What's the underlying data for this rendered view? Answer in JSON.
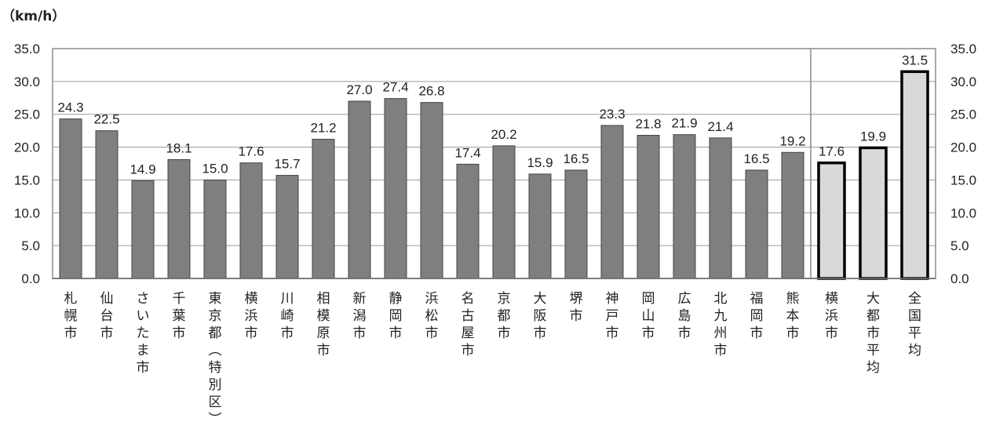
{
  "chart_data": {
    "type": "bar",
    "unit_label": "（km/h）",
    "ylim": [
      0,
      35
    ],
    "yticks": [
      "0.0",
      "5.0",
      "10.0",
      "15.0",
      "20.0",
      "25.0",
      "30.0",
      "35.0"
    ],
    "grid": true,
    "secondary_axis": true,
    "categories": [
      "札幌市",
      "仙台市",
      "さいたま市",
      "千葉市",
      "東京都(特別区)",
      "横浜市",
      "川崎市",
      "相模原市",
      "新潟市",
      "静岡市",
      "浜松市",
      "名古屋市",
      "京都市",
      "大阪市",
      "堺市",
      "神戸市",
      "岡山市",
      "広島市",
      "北九州市",
      "福岡市",
      "熊本市",
      "横浜市",
      "大都市平均",
      "全国平均"
    ],
    "values": [
      24.3,
      22.5,
      14.9,
      18.1,
      15.0,
      17.6,
      15.7,
      21.2,
      27.0,
      27.4,
      26.8,
      17.4,
      20.2,
      15.9,
      16.5,
      23.3,
      21.8,
      21.9,
      21.4,
      16.5,
      19.2,
      17.6,
      19.9,
      31.5
    ],
    "value_labels": [
      "24.3",
      "22.5",
      "14.9",
      "18.1",
      "15.0",
      "17.6",
      "15.7",
      "21.2",
      "27.0",
      "27.4",
      "26.8",
      "17.4",
      "20.2",
      "15.9",
      "16.5",
      "23.3",
      "21.8",
      "21.9",
      "21.4",
      "16.5",
      "19.2",
      "17.6",
      "19.9",
      "31.5"
    ],
    "groups": [
      {
        "count": 21,
        "style": "city"
      },
      {
        "count": 3,
        "style": "comparison"
      }
    ],
    "colors": {
      "city_fill": "#7f7f7f",
      "city_stroke": "#444444",
      "comparison_fill": "#d9d9d9",
      "comparison_stroke": "#000000",
      "grid": "#9a9a9a",
      "frame": "#8c8c8c"
    }
  }
}
